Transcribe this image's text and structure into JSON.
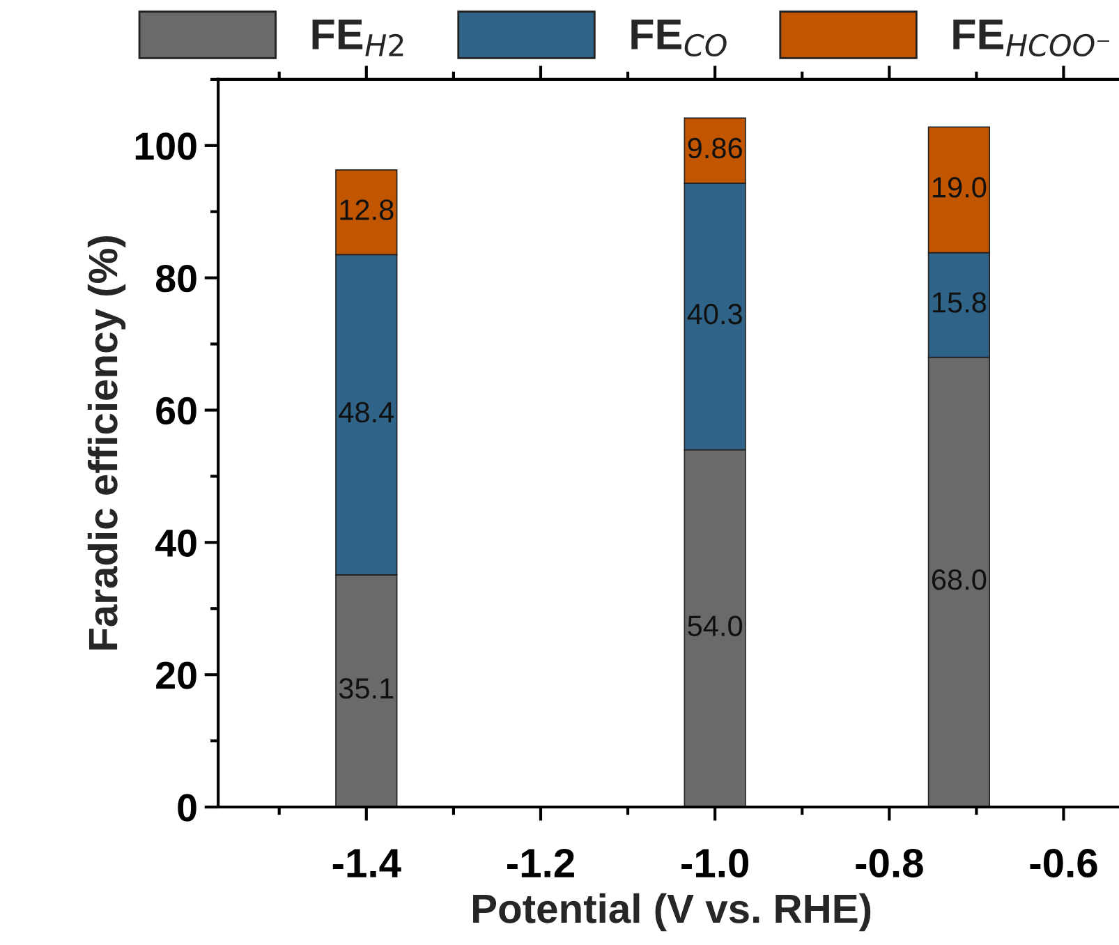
{
  "chart_data": {
    "type": "bar",
    "stacked": true,
    "xlabel": "Potential (V vs. RHE)",
    "ylabel": "Faradic efficiency (%)",
    "x": [
      -1.4,
      -1.0,
      -0.72
    ],
    "series": [
      {
        "name": "FE$_{H2}$",
        "color": "#6a6a6a",
        "values": [
          35.1,
          54.0,
          68.0
        ],
        "value_labels": [
          "35.1",
          "54.0",
          "68.0"
        ]
      },
      {
        "name": "FE$_{CO}$",
        "color": "#2f6388",
        "values": [
          48.4,
          40.3,
          15.8
        ],
        "value_labels": [
          "48.4",
          "40.3",
          "15.8"
        ]
      },
      {
        "name": "FE$_{HCOO⁻}$",
        "color": "#c15500",
        "values": [
          12.8,
          9.86,
          19.0
        ],
        "value_labels": [
          "12.8",
          "9.86",
          "19.0"
        ]
      }
    ],
    "xlim": [
      -1.57,
      -0.53
    ],
    "xticks": [
      {
        "value": -1.4,
        "label": "-1.4"
      },
      {
        "value": -1.2,
        "label": "-1.2"
      },
      {
        "value": -1.0,
        "label": "-1.0"
      },
      {
        "value": -0.8,
        "label": "-0.8"
      },
      {
        "value": -0.6,
        "label": "-0.6"
      }
    ],
    "ylim": [
      0,
      110
    ],
    "yticks": [
      0,
      20,
      40,
      60,
      80,
      100
    ],
    "legend": "top",
    "grid": false
  }
}
